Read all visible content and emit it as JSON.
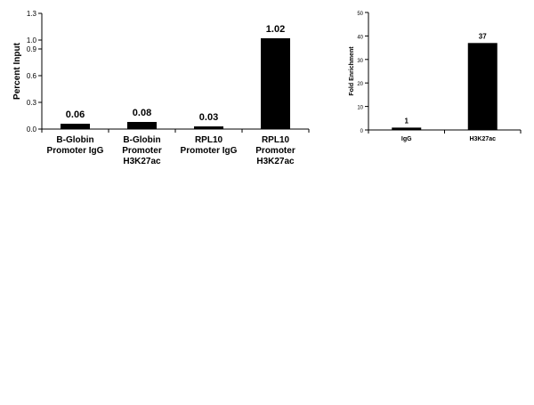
{
  "chart_data": [
    {
      "type": "bar",
      "categories": [
        [
          "B-Globin",
          "Promoter IgG"
        ],
        [
          "B-Globin",
          "Promoter",
          "H3K27ac"
        ],
        [
          "RPL10",
          "Promoter IgG"
        ],
        [
          "RPL10",
          "Promoter",
          "H3K27ac"
        ]
      ],
      "values": [
        0.06,
        0.08,
        0.03,
        1.02
      ],
      "data_labels": [
        "0.06",
        "0.08",
        "0.03",
        "1.02"
      ],
      "title": "",
      "xlabel": "",
      "ylabel": "Percent Input",
      "ylim": [
        0,
        1.3
      ],
      "yticks": [
        "0.0",
        "0.3",
        "0.6",
        "0.9",
        "1.0",
        "1.3"
      ],
      "ytick_values": [
        0,
        0.3,
        0.6,
        0.9,
        1.0,
        1.3
      ],
      "grid": false,
      "bar_color": "#000000"
    },
    {
      "type": "bar",
      "categories": [
        [
          "IgG"
        ],
        [
          "H3K27ac"
        ]
      ],
      "values": [
        1,
        37
      ],
      "data_labels": [
        "1",
        "37"
      ],
      "title": "",
      "xlabel": "",
      "ylabel": "Fold Enrichment",
      "ylim": [
        0,
        50
      ],
      "yticks": [
        "0",
        "10",
        "20",
        "30",
        "40",
        "50"
      ],
      "ytick_values": [
        0,
        10,
        20,
        30,
        40,
        50
      ],
      "grid": false,
      "bar_color": "#000000"
    }
  ]
}
